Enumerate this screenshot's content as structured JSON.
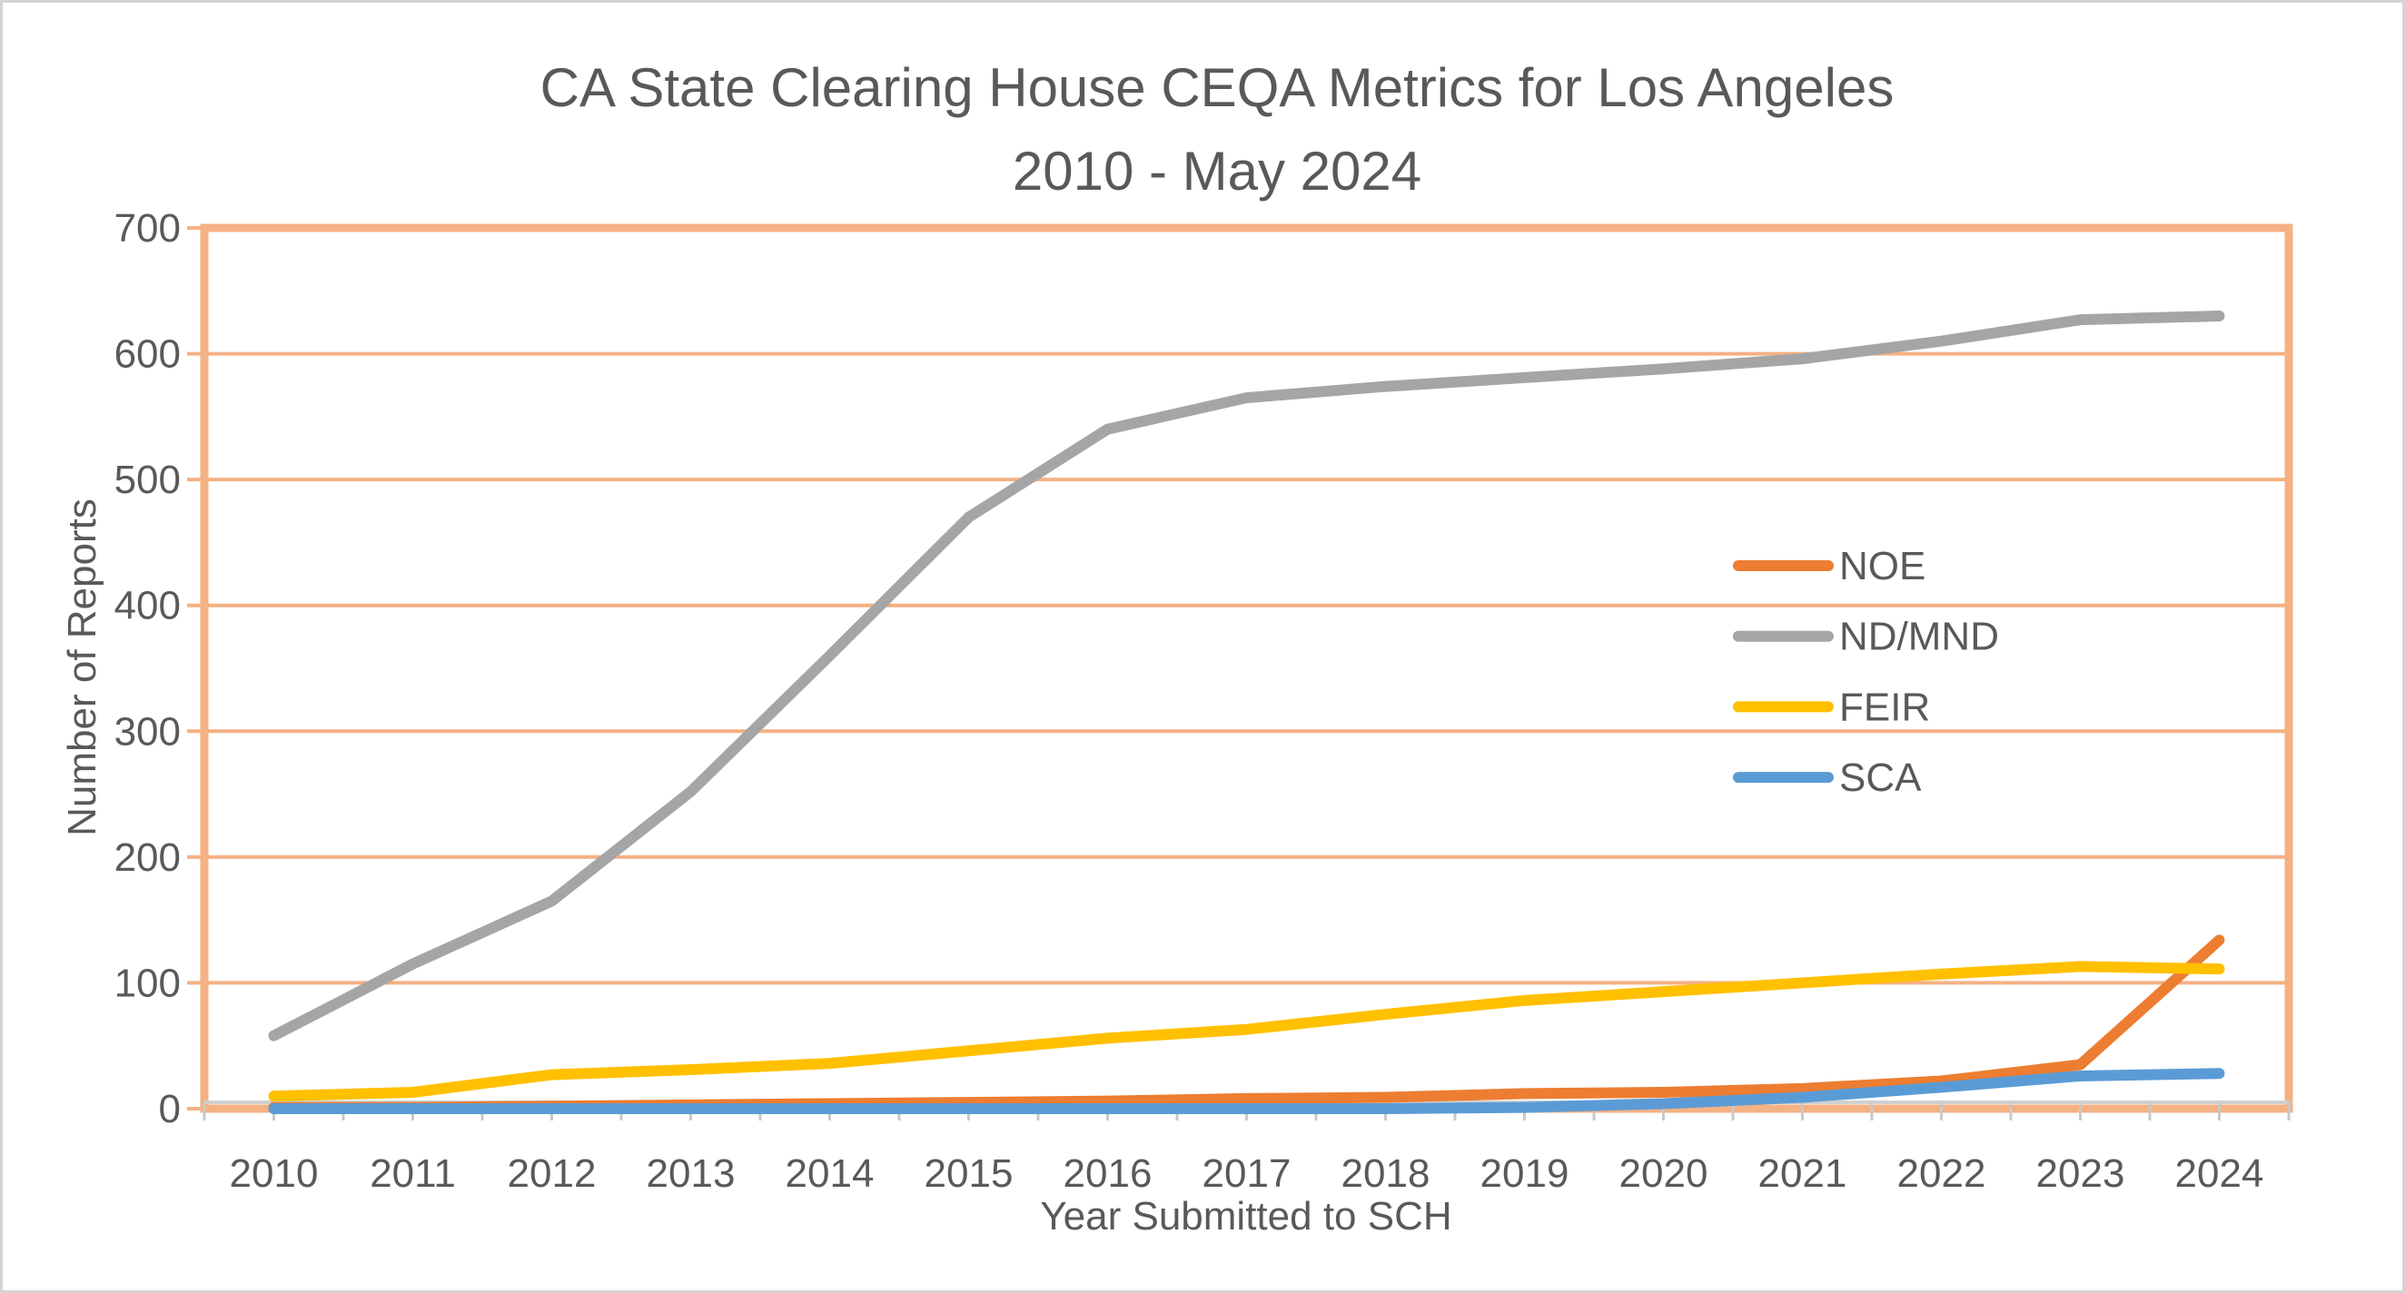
{
  "frame": {
    "background": "#FFFFFF",
    "border_color": "#D4D4D4"
  },
  "chart_data": {
    "type": "line",
    "title_line1": "CA State Clearing House CEQA Metrics for Los Angeles",
    "title_line2": "2010 - May 2024",
    "xlabel": "Year Submitted to SCH",
    "ylabel": "Number of Reports",
    "ylim": [
      0,
      700
    ],
    "y_ticks": [
      0,
      100,
      200,
      300,
      400,
      500,
      600,
      700
    ],
    "grid": true,
    "legend_position": "middle-right",
    "categories": [
      "2010",
      "2011",
      "2012",
      "2013",
      "2014",
      "2015",
      "2016",
      "2017",
      "2018",
      "2019",
      "2020",
      "2021",
      "2022",
      "2023",
      "2024"
    ],
    "series": [
      {
        "name": "NOE",
        "color": "#ED7D31",
        "values": [
          1,
          1,
          2,
          3,
          4,
          5,
          6,
          8,
          9,
          12,
          13,
          16,
          22,
          35,
          134
        ]
      },
      {
        "name": "ND/MND",
        "color": "#A5A5A5",
        "values": [
          58,
          115,
          165,
          252,
          360,
          470,
          540,
          565,
          574,
          581,
          588,
          596,
          610,
          627,
          630
        ]
      },
      {
        "name": "FEIR",
        "color": "#FFC000",
        "values": [
          10,
          13,
          27,
          31,
          36,
          46,
          56,
          63,
          75,
          86,
          93,
          100,
          107,
          113,
          111
        ]
      },
      {
        "name": "SCA",
        "color": "#5B9BD5",
        "values": [
          0,
          0,
          0,
          0,
          0,
          0,
          0,
          0,
          0,
          1,
          4,
          9,
          17,
          26,
          28
        ]
      }
    ],
    "colors": {
      "gridline": "#F4B183",
      "plot_border": "#F4B183",
      "axis_line": "#D0D0D0",
      "tick_mark": "#C9C9C9",
      "text": "#595959"
    }
  }
}
